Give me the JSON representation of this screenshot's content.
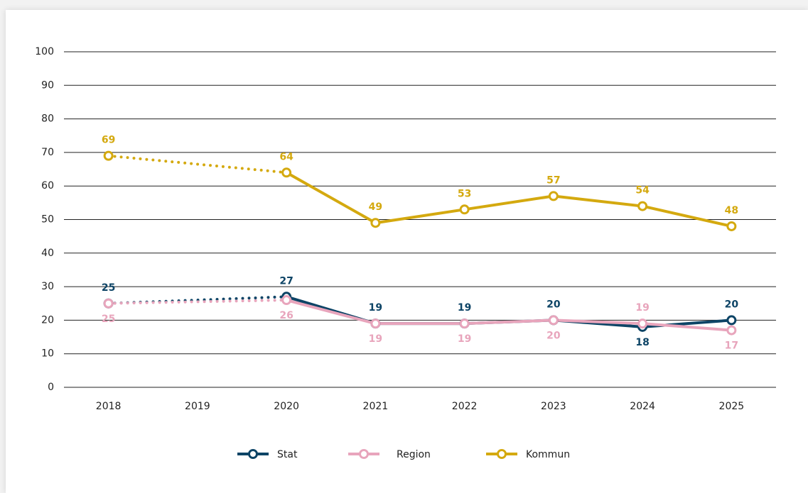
{
  "chart_data": {
    "type": "line",
    "categories": [
      "2018",
      "2019",
      "2020",
      "2021",
      "2022",
      "2023",
      "2024",
      "2025"
    ],
    "series": [
      {
        "name": "Stat",
        "color": "#0d4466",
        "values": [
          25,
          null,
          27,
          19,
          19,
          20,
          18,
          20
        ]
      },
      {
        "name": "Region",
        "color": "#e8a5bc",
        "values": [
          25,
          null,
          26,
          19,
          19,
          20,
          19,
          17
        ]
      },
      {
        "name": "Kommun",
        "color": "#d4a90f",
        "values": [
          69,
          null,
          64,
          49,
          53,
          57,
          54,
          48
        ]
      }
    ],
    "ylim": [
      0,
      100
    ],
    "yticks": [
      0,
      10,
      20,
      30,
      40,
      50,
      60,
      70,
      80,
      90,
      100
    ],
    "grid": true,
    "gap_line": "dotted",
    "legend": "bottom"
  }
}
